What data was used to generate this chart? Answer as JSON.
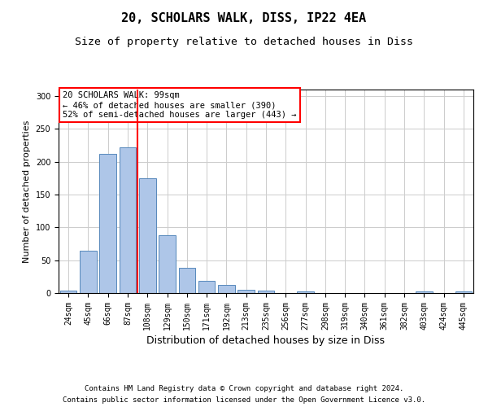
{
  "title1": "20, SCHOLARS WALK, DISS, IP22 4EA",
  "title2": "Size of property relative to detached houses in Diss",
  "xlabel": "Distribution of detached houses by size in Diss",
  "ylabel": "Number of detached properties",
  "categories": [
    "24sqm",
    "45sqm",
    "66sqm",
    "87sqm",
    "108sqm",
    "129sqm",
    "150sqm",
    "171sqm",
    "192sqm",
    "213sqm",
    "235sqm",
    "256sqm",
    "277sqm",
    "298sqm",
    "319sqm",
    "340sqm",
    "361sqm",
    "382sqm",
    "403sqm",
    "424sqm",
    "445sqm"
  ],
  "values": [
    4,
    65,
    212,
    222,
    175,
    88,
    38,
    18,
    13,
    5,
    4,
    0,
    2,
    0,
    0,
    0,
    0,
    0,
    2,
    0,
    2
  ],
  "bar_color": "#aec6e8",
  "bar_edge_color": "#5588bb",
  "vline_color": "red",
  "vline_x_index": 3.5,
  "annotation_text": "20 SCHOLARS WALK: 99sqm\n← 46% of detached houses are smaller (390)\n52% of semi-detached houses are larger (443) →",
  "annotation_box_color": "white",
  "annotation_box_edge": "red",
  "ylim": [
    0,
    310
  ],
  "yticks": [
    0,
    50,
    100,
    150,
    200,
    250,
    300
  ],
  "grid_color": "#cccccc",
  "background_color": "white",
  "footnote1": "Contains HM Land Registry data © Crown copyright and database right 2024.",
  "footnote2": "Contains public sector information licensed under the Open Government Licence v3.0.",
  "title1_fontsize": 11,
  "title2_fontsize": 9.5,
  "xlabel_fontsize": 9,
  "ylabel_fontsize": 8,
  "tick_fontsize": 7,
  "annotation_fontsize": 7.5,
  "footnote_fontsize": 6.5
}
